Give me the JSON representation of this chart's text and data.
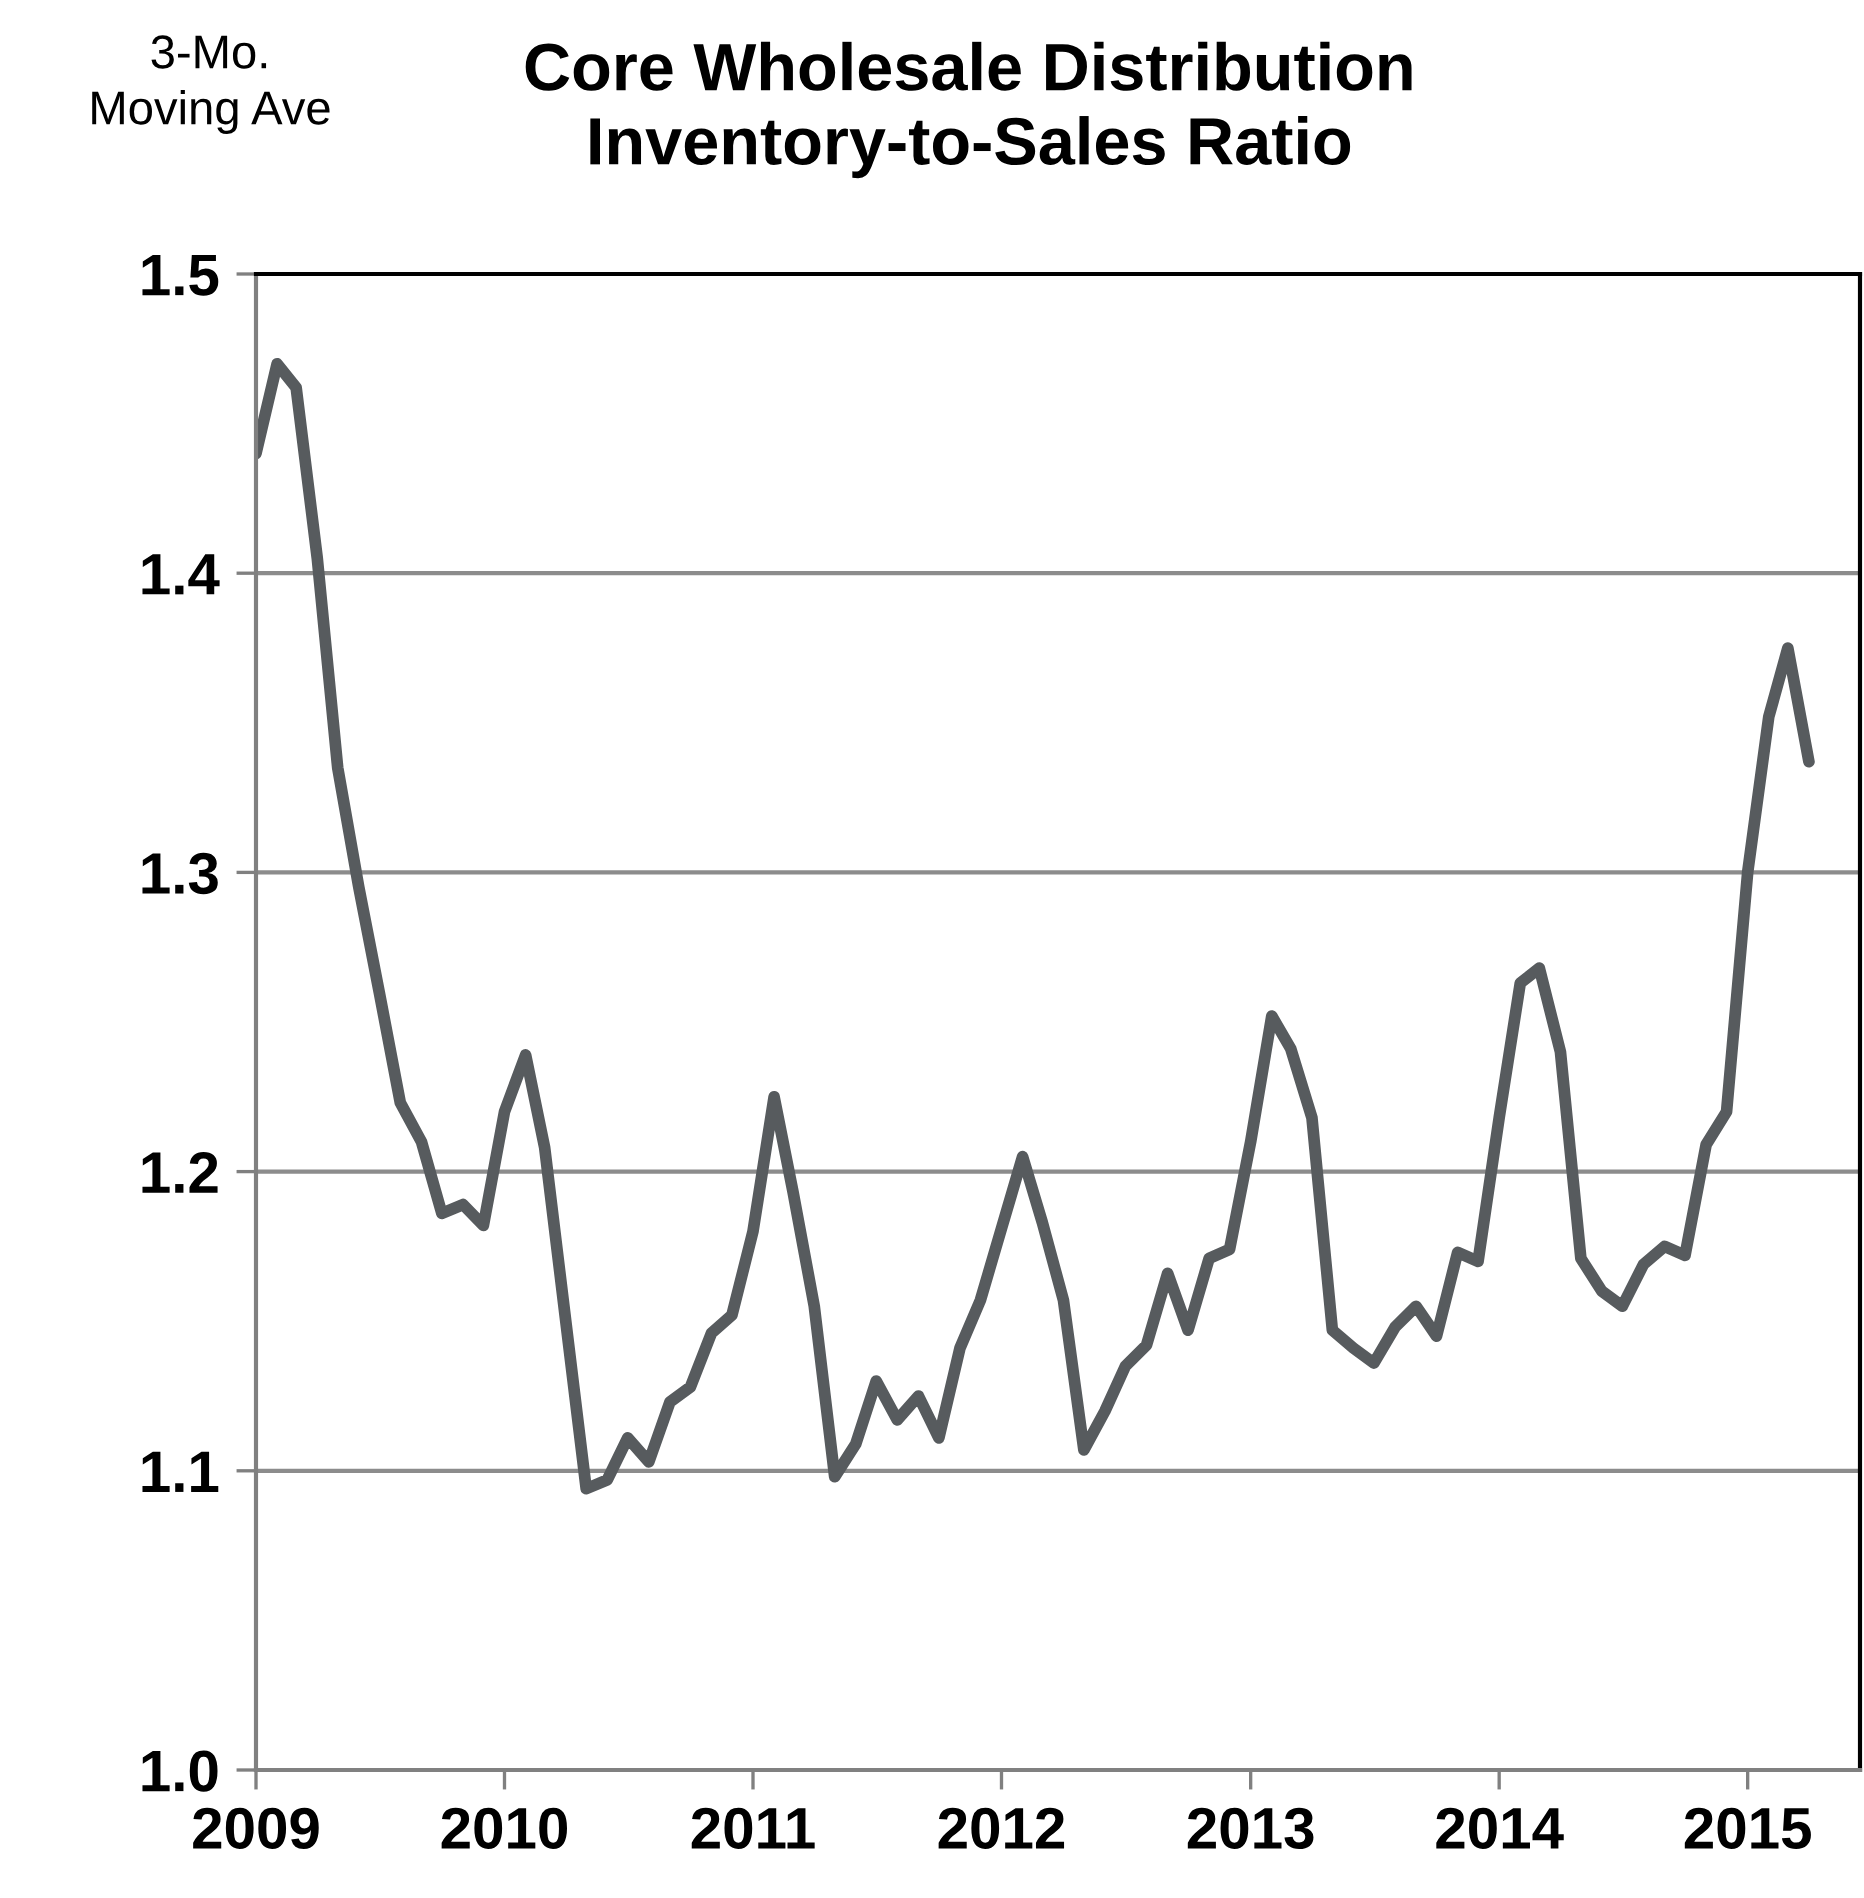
{
  "chart_data": {
    "type": "line",
    "title": "Core Wholesale Distribution\nInventory-to-Sales Ratio",
    "annotations": [
      "3-Mo.\nMoving Ave"
    ],
    "x": [
      "2009-01",
      "2009-02",
      "2009-03",
      "2009-04",
      "2009-05",
      "2009-06",
      "2009-07",
      "2009-08",
      "2009-09",
      "2009-10",
      "2009-11",
      "2009-12",
      "2010-01",
      "2010-02",
      "2010-03",
      "2010-04",
      "2010-05",
      "2010-06",
      "2010-07",
      "2010-08",
      "2010-09",
      "2010-10",
      "2010-11",
      "2010-12",
      "2011-01",
      "2011-02",
      "2011-03",
      "2011-04",
      "2011-05",
      "2011-06",
      "2011-07",
      "2011-08",
      "2011-09",
      "2011-10",
      "2011-11",
      "2011-12",
      "2012-01",
      "2012-02",
      "2012-03",
      "2012-04",
      "2012-05",
      "2012-06",
      "2012-07",
      "2012-08",
      "2012-09",
      "2012-10",
      "2012-11",
      "2012-12",
      "2013-01",
      "2013-02",
      "2013-03",
      "2013-04",
      "2013-05",
      "2013-06",
      "2013-07",
      "2013-08",
      "2013-09",
      "2013-10",
      "2013-11",
      "2013-12",
      "2014-01",
      "2014-02",
      "2014-03",
      "2014-04",
      "2014-05",
      "2014-06",
      "2014-07",
      "2014-08",
      "2014-09",
      "2014-10",
      "2014-11",
      "2014-12",
      "2015-01",
      "2015-02",
      "2015-03",
      "2015-04"
    ],
    "series": [
      {
        "color": "#575b5e",
        "values": [
          1.44,
          1.47,
          1.462,
          1.405,
          1.335,
          1.295,
          1.26,
          1.223,
          1.21,
          1.186,
          1.189,
          1.182,
          1.22,
          1.239,
          1.208,
          1.15,
          1.094,
          1.097,
          1.111,
          1.103,
          1.123,
          1.128,
          1.146,
          1.152,
          1.18,
          1.225,
          1.193,
          1.155,
          1.098,
          1.109,
          1.13,
          1.117,
          1.125,
          1.111,
          1.141,
          1.157,
          1.181,
          1.205,
          1.183,
          1.157,
          1.107,
          1.12,
          1.135,
          1.142,
          1.166,
          1.147,
          1.171,
          1.174,
          1.21,
          1.252,
          1.241,
          1.218,
          1.147,
          1.141,
          1.136,
          1.148,
          1.155,
          1.145,
          1.173,
          1.17,
          1.218,
          1.263,
          1.268,
          1.24,
          1.171,
          1.16,
          1.155,
          1.169,
          1.175,
          1.172,
          1.209,
          1.22,
          1.3,
          1.352,
          1.375,
          1.337
        ]
      }
    ],
    "xlim": [
      "2009-01",
      "2015-06-15"
    ],
    "xticks": [
      {
        "value": "2009",
        "label": "2009"
      },
      {
        "value": "2010",
        "label": "2010"
      },
      {
        "value": "2011",
        "label": "2011"
      },
      {
        "value": "2012",
        "label": "2012"
      },
      {
        "value": "2013",
        "label": "2013"
      },
      {
        "value": "2014",
        "label": "2014"
      },
      {
        "value": "2015",
        "label": "2015"
      }
    ],
    "ylim": [
      1.0,
      1.5
    ],
    "yticks": [
      {
        "value": 1.0,
        "label": "1.0"
      },
      {
        "value": 1.1,
        "label": "1.1"
      },
      {
        "value": 1.2,
        "label": "1.2"
      },
      {
        "value": 1.3,
        "label": "1.3"
      },
      {
        "value": 1.4,
        "label": "1.4"
      },
      {
        "value": 1.5,
        "label": "1.5"
      }
    ],
    "grid": "y",
    "marker": "none",
    "line_style": "solid"
  }
}
